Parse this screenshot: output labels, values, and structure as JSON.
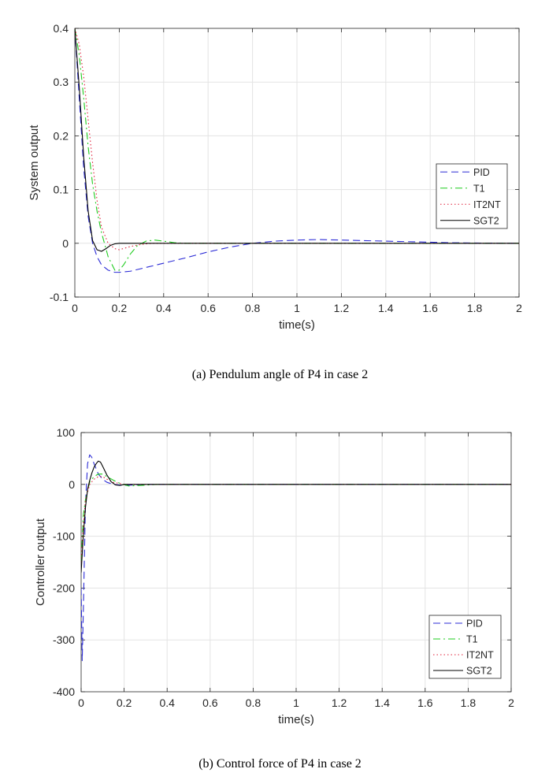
{
  "captions": {
    "top": "(a) Pendulum angle of P4 in case 2",
    "bottom": "(b) Control force of P4 in case 2"
  },
  "colors": {
    "PID": "#2b2bd6",
    "T1": "#1fcc1f",
    "IT2NT": "#e0203a",
    "SGT2": "#000000",
    "grid": "#e3e3e3",
    "axis": "#262626"
  },
  "chart_data": [
    {
      "type": "line",
      "xlabel": "time(s)",
      "ylabel": "System output",
      "xlim": [
        0,
        2
      ],
      "ylim": [
        -0.1,
        0.4
      ],
      "xticks": [
        0,
        0.2,
        0.4,
        0.6,
        0.8,
        1,
        1.2,
        1.4,
        1.6,
        1.8,
        2
      ],
      "xtick_labels": [
        "0",
        "0.2",
        "0.4",
        "0.6",
        "0.8",
        "1",
        "1.2",
        "1.4",
        "1.6",
        "1.8",
        "2"
      ],
      "yticks": [
        -0.1,
        0,
        0.1,
        0.2,
        0.3,
        0.4
      ],
      "ytick_labels": [
        "-0.1",
        "0",
        "0.1",
        "0.2",
        "0.3",
        "0.4"
      ],
      "grid": true,
      "legend_position": "right-middle",
      "series": [
        {
          "name": "PID",
          "style": "dashed",
          "x": [
            0,
            0.02,
            0.04,
            0.06,
            0.08,
            0.1,
            0.12,
            0.15,
            0.18,
            0.2,
            0.25,
            0.3,
            0.4,
            0.5,
            0.6,
            0.7,
            0.8,
            0.9,
            1.0,
            1.1,
            1.2,
            1.3,
            1.4,
            1.5,
            1.6,
            1.7,
            1.8,
            2.0
          ],
          "y": [
            0.4,
            0.27,
            0.14,
            0.05,
            0.0,
            -0.025,
            -0.04,
            -0.05,
            -0.054,
            -0.054,
            -0.052,
            -0.047,
            -0.037,
            -0.027,
            -0.016,
            -0.007,
            0.0,
            0.004,
            0.006,
            0.007,
            0.006,
            0.005,
            0.004,
            0.003,
            0.002,
            0.001,
            0.0005,
            0.0
          ]
        },
        {
          "name": "T1",
          "style": "dashdot",
          "x": [
            0,
            0.02,
            0.04,
            0.06,
            0.08,
            0.1,
            0.12,
            0.15,
            0.18,
            0.2,
            0.22,
            0.25,
            0.28,
            0.32,
            0.36,
            0.4,
            0.45,
            0.5,
            0.6,
            2.0
          ],
          "y": [
            0.4,
            0.35,
            0.27,
            0.18,
            0.11,
            0.06,
            0.02,
            -0.025,
            -0.05,
            -0.05,
            -0.04,
            -0.02,
            -0.005,
            0.004,
            0.006,
            0.004,
            0.001,
            0.0,
            0.0,
            0.0
          ]
        },
        {
          "name": "IT2NT",
          "style": "dotted",
          "x": [
            0,
            0.02,
            0.04,
            0.06,
            0.08,
            0.1,
            0.12,
            0.15,
            0.18,
            0.2,
            0.25,
            0.3,
            0.35,
            2.0
          ],
          "y": [
            0.4,
            0.37,
            0.31,
            0.23,
            0.15,
            0.08,
            0.03,
            0.0,
            -0.01,
            -0.012,
            -0.006,
            -0.002,
            0.0,
            0.0
          ]
        },
        {
          "name": "SGT2",
          "style": "solid",
          "x": [
            0,
            0.02,
            0.04,
            0.06,
            0.08,
            0.1,
            0.12,
            0.14,
            0.16,
            0.18,
            0.2,
            0.25,
            2.0
          ],
          "y": [
            0.4,
            0.29,
            0.16,
            0.06,
            0.005,
            -0.012,
            -0.015,
            -0.01,
            -0.004,
            -0.001,
            0.0,
            0.0,
            0.0
          ]
        }
      ]
    },
    {
      "type": "line",
      "xlabel": "time(s)",
      "ylabel": "Controller output",
      "xlim": [
        0,
        2
      ],
      "ylim": [
        -400,
        100
      ],
      "xticks": [
        0,
        0.2,
        0.4,
        0.6,
        0.8,
        1,
        1.2,
        1.4,
        1.6,
        1.8,
        2
      ],
      "xtick_labels": [
        "0",
        "0.2",
        "0.4",
        "0.6",
        "0.8",
        "1",
        "1.2",
        "1.4",
        "1.6",
        "1.8",
        "2"
      ],
      "yticks": [
        -400,
        -300,
        -200,
        -100,
        0,
        100
      ],
      "ytick_labels": [
        "-400",
        "-300",
        "-200",
        "-100",
        "0",
        "100"
      ],
      "grid": true,
      "legend_position": "bottom-right",
      "series": [
        {
          "name": "PID",
          "style": "dashed",
          "x": [
            0,
            0.005,
            0.01,
            0.02,
            0.03,
            0.04,
            0.05,
            0.06,
            0.08,
            0.1,
            0.12,
            0.15,
            0.2,
            0.3,
            2.0
          ],
          "y": [
            -200,
            -340,
            -250,
            -40,
            40,
            57,
            52,
            40,
            20,
            10,
            4,
            0,
            -2,
            0,
            0
          ]
        },
        {
          "name": "T1",
          "style": "dashdot",
          "x": [
            0,
            0.01,
            0.02,
            0.04,
            0.06,
            0.08,
            0.1,
            0.12,
            0.15,
            0.18,
            0.22,
            0.28,
            0.35,
            2.0
          ],
          "y": [
            -150,
            -60,
            -30,
            5,
            15,
            20,
            20,
            15,
            8,
            2,
            -3,
            -2,
            0,
            0
          ]
        },
        {
          "name": "IT2NT",
          "style": "dotted",
          "x": [
            0,
            0.01,
            0.02,
            0.04,
            0.06,
            0.08,
            0.1,
            0.12,
            0.15,
            0.2,
            0.25,
            2.0
          ],
          "y": [
            -150,
            -80,
            -30,
            0,
            10,
            15,
            15,
            10,
            4,
            0,
            0,
            0
          ]
        },
        {
          "name": "SGT2",
          "style": "solid",
          "x": [
            0,
            0.01,
            0.02,
            0.03,
            0.04,
            0.05,
            0.06,
            0.07,
            0.08,
            0.09,
            0.1,
            0.12,
            0.14,
            0.16,
            0.18,
            0.2,
            2.0
          ],
          "y": [
            -170,
            -100,
            -45,
            -10,
            8,
            22,
            33,
            40,
            45,
            43,
            35,
            18,
            5,
            -1,
            -2,
            0,
            0
          ]
        }
      ]
    }
  ]
}
